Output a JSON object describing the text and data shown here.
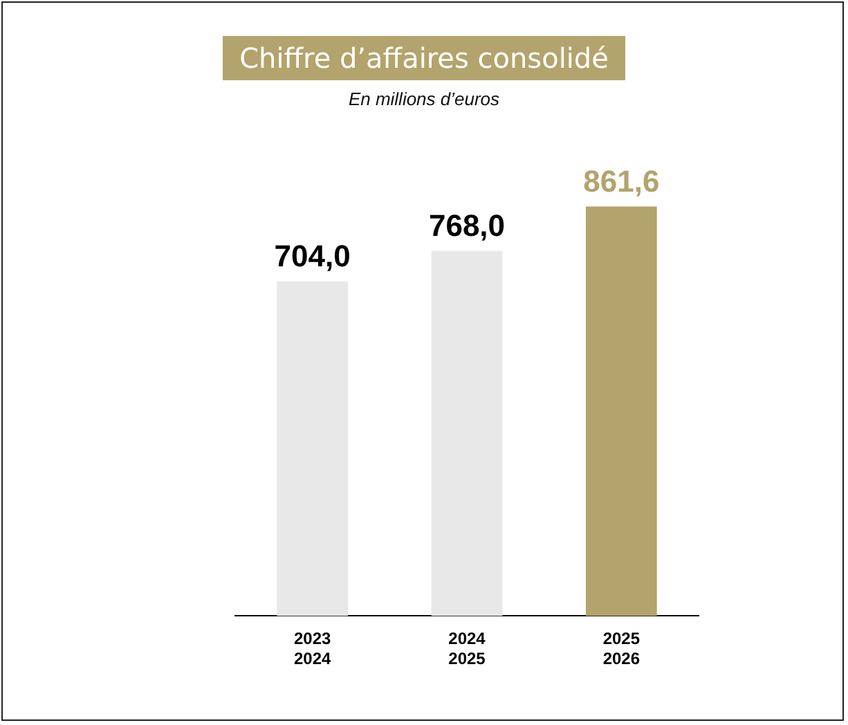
{
  "chart_data": {
    "type": "bar",
    "title": "Chiffre d’affaires consolidé",
    "subtitle": "En millions d’euros",
    "categories": [
      "2023\n2024",
      "2024\n2025",
      "2025\n2026"
    ],
    "values": [
      704.0,
      768.0,
      861.6
    ],
    "colors": [
      "#e8e8e8",
      "#e8e8e8",
      "#b3a36c"
    ],
    "value_labels": [
      "704,0",
      "768,0",
      "861,6"
    ]
  }
}
